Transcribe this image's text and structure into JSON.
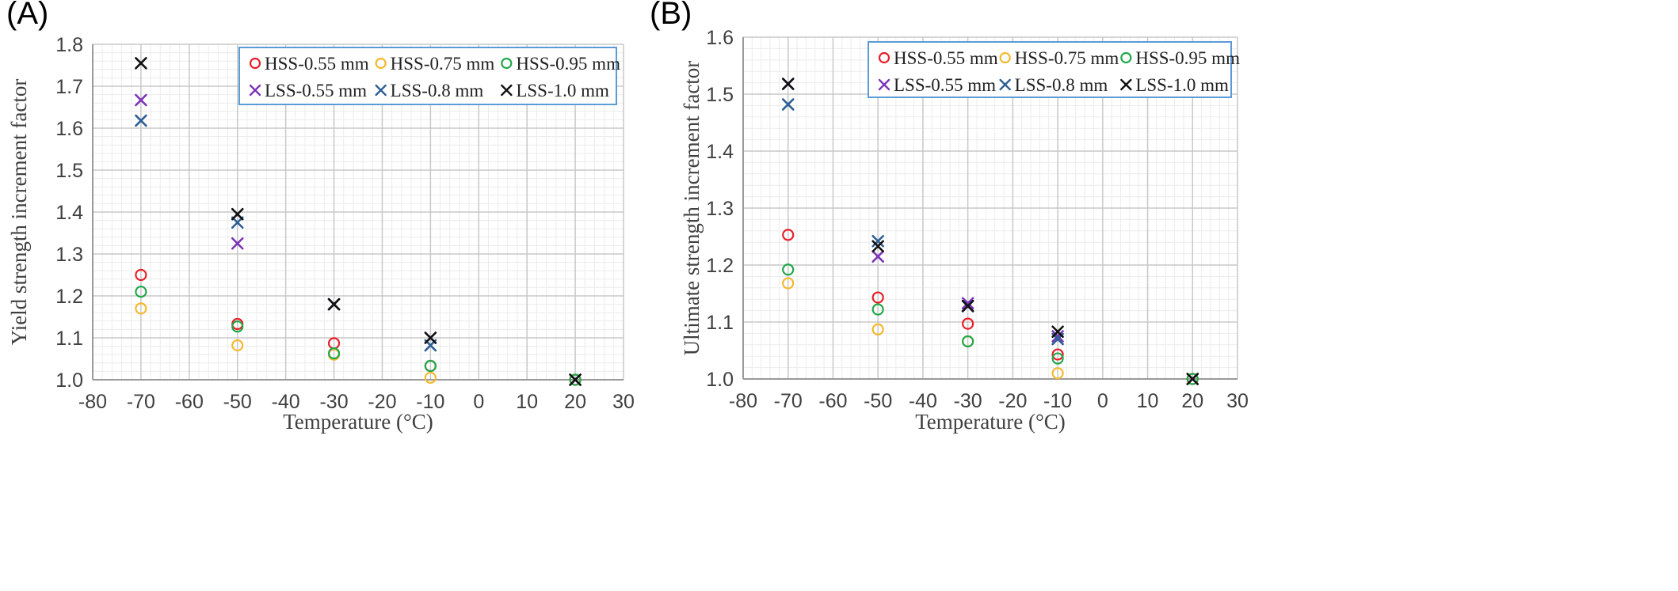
{
  "chart_data": [
    {
      "type": "scatter",
      "panel_label": "(A)",
      "xlabel": "Temperature (°C)",
      "ylabel": "Yield strength increment factor",
      "xlim": [
        -80,
        30
      ],
      "ylim": [
        1.0,
        1.8
      ],
      "xticks": [
        -80,
        -70,
        -60,
        -50,
        -40,
        -30,
        -20,
        -10,
        0,
        10,
        20,
        30
      ],
      "yticks": [
        1.0,
        1.1,
        1.2,
        1.3,
        1.4,
        1.5,
        1.6,
        1.7,
        1.8
      ],
      "ytick_labels": [
        "1.0",
        "1.1",
        "1.2",
        "1.3",
        "1.4",
        "1.5",
        "1.6",
        "1.7",
        "1.8"
      ],
      "grid": true,
      "legend_position": "top-right",
      "series": [
        {
          "name": "HSS-0.55 mm",
          "marker": "circle",
          "color": "#e8202a",
          "x": [
            -70,
            -50,
            -30,
            -10,
            20
          ],
          "y": [
            1.25,
            1.133,
            1.087,
            1.033,
            1.0
          ]
        },
        {
          "name": "HSS-0.75 mm",
          "marker": "circle",
          "color": "#f5b82e",
          "x": [
            -70,
            -50,
            -30,
            -10,
            20
          ],
          "y": [
            1.17,
            1.082,
            1.06,
            1.005,
            1.0
          ]
        },
        {
          "name": "HSS-0.95 mm",
          "marker": "circle",
          "color": "#22a84a",
          "x": [
            -70,
            -50,
            -30,
            -10,
            20
          ],
          "y": [
            1.21,
            1.127,
            1.063,
            1.033,
            1.0
          ]
        },
        {
          "name": "LSS-0.55 mm",
          "marker": "x",
          "color": "#7b35b8",
          "x": [
            -70,
            -50,
            -30,
            -10,
            20
          ],
          "y": [
            1.667,
            1.325,
            1.18,
            1.1,
            1.0
          ]
        },
        {
          "name": "LSS-0.8 mm",
          "marker": "x",
          "color": "#2e5f94",
          "x": [
            -70,
            -50,
            -30,
            -10,
            20
          ],
          "y": [
            1.618,
            1.375,
            1.18,
            1.082,
            1.0
          ]
        },
        {
          "name": "LSS-1.0 mm",
          "marker": "x",
          "color": "#111111",
          "x": [
            -70,
            -50,
            -30,
            -10,
            20
          ],
          "y": [
            1.755,
            1.395,
            1.18,
            1.1,
            1.0
          ]
        }
      ]
    },
    {
      "type": "scatter",
      "panel_label": "(B)",
      "xlabel": "Temperature (°C)",
      "ylabel": "Ultimate strength increment factor",
      "xlim": [
        -80,
        30
      ],
      "ylim": [
        1.0,
        1.6
      ],
      "xticks": [
        -80,
        -70,
        -60,
        -50,
        -40,
        -30,
        -20,
        -10,
        0,
        10,
        20,
        30
      ],
      "yticks": [
        1.0,
        1.1,
        1.2,
        1.3,
        1.4,
        1.5,
        1.6
      ],
      "ytick_labels": [
        "1.0",
        "1.1",
        "1.2",
        "1.3",
        "1.4",
        "1.5",
        "1.6"
      ],
      "grid": true,
      "legend_position": "top-right",
      "series": [
        {
          "name": "HSS-0.55 mm",
          "marker": "circle",
          "color": "#e8202a",
          "x": [
            -70,
            -50,
            -30,
            -10,
            20
          ],
          "y": [
            1.253,
            1.143,
            1.097,
            1.043,
            1.0
          ]
        },
        {
          "name": "HSS-0.75 mm",
          "marker": "circle",
          "color": "#f5b82e",
          "x": [
            -70,
            -50,
            -30,
            -10,
            20
          ],
          "y": [
            1.168,
            1.087,
            1.066,
            1.01,
            1.0
          ]
        },
        {
          "name": "HSS-0.95 mm",
          "marker": "circle",
          "color": "#22a84a",
          "x": [
            -70,
            -50,
            -30,
            -10,
            20
          ],
          "y": [
            1.192,
            1.122,
            1.066,
            1.036,
            1.0
          ]
        },
        {
          "name": "LSS-0.55 mm",
          "marker": "x",
          "color": "#7b35b8",
          "x": [
            -70,
            -50,
            -30,
            -10,
            20
          ],
          "y": [
            1.518,
            1.215,
            1.133,
            1.075,
            1.0
          ]
        },
        {
          "name": "LSS-0.8 mm",
          "marker": "x",
          "color": "#2e5f94",
          "x": [
            -70,
            -50,
            -30,
            -10,
            20
          ],
          "y": [
            1.482,
            1.242,
            1.128,
            1.07,
            1.0
          ]
        },
        {
          "name": "LSS-1.0 mm",
          "marker": "x",
          "color": "#111111",
          "x": [
            -70,
            -50,
            -30,
            -10,
            20
          ],
          "y": [
            1.518,
            1.233,
            1.128,
            1.083,
            1.0
          ]
        }
      ]
    }
  ]
}
